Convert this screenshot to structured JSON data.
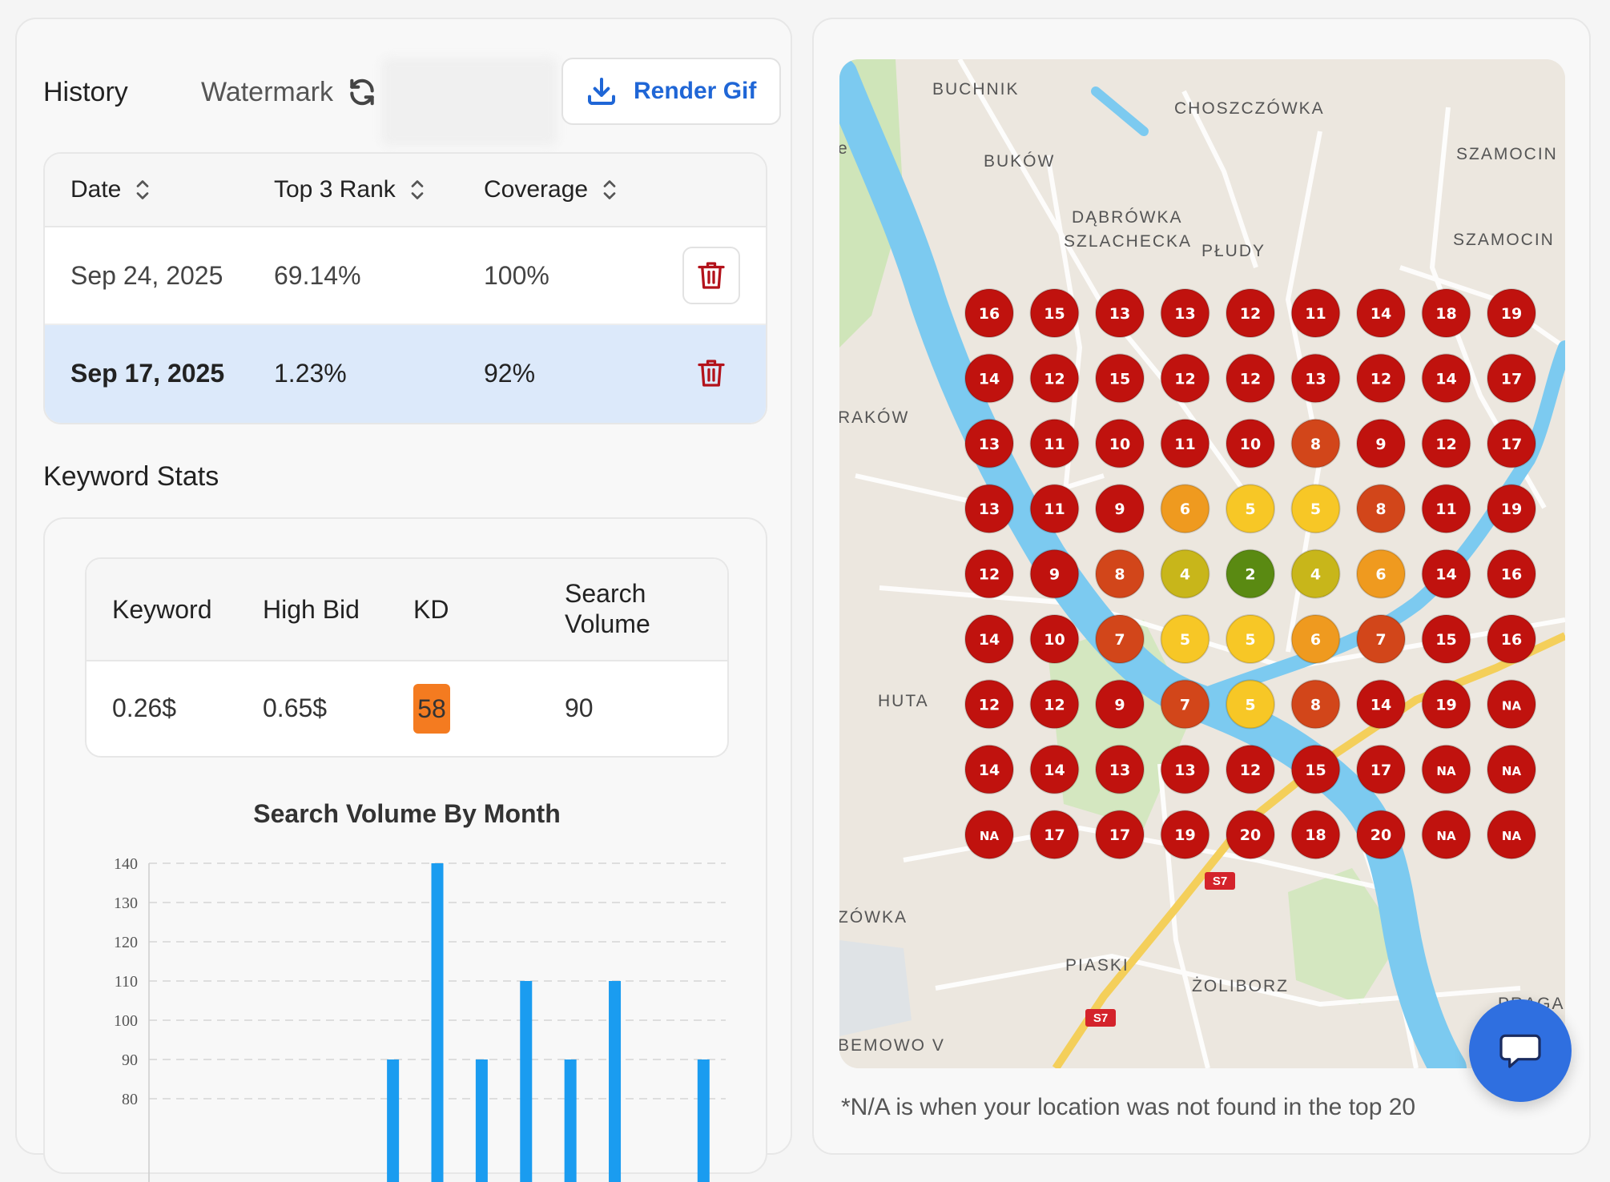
{
  "history": {
    "title": "History",
    "watermark_label": "Watermark",
    "render_button": "Render Gif",
    "columns": [
      "Date",
      "Top 3 Rank",
      "Coverage"
    ],
    "rows": [
      {
        "date": "Sep 24, 2025",
        "top3": "69.14%",
        "coverage": "100%",
        "selected": false
      },
      {
        "date": "Sep 17, 2025",
        "top3": "1.23%",
        "coverage": "92%",
        "selected": true
      }
    ]
  },
  "keyword_stats": {
    "title": "Keyword Stats",
    "columns": [
      "Keyword",
      "High Bid",
      "KD",
      "Search\nVolume"
    ],
    "row": {
      "keyword": "0.26$",
      "high_bid": "0.65$",
      "kd": "58",
      "search_volume": "90"
    },
    "kd_color": "#f47b20"
  },
  "chart_data": {
    "type": "bar",
    "title": "Search Volume By Month",
    "yticks": [
      140,
      130,
      120,
      110,
      100,
      90,
      80
    ],
    "ylim": [
      70,
      140
    ],
    "grid": true,
    "values": [
      null,
      null,
      null,
      null,
      null,
      90,
      140,
      90,
      110,
      90,
      110,
      null,
      90
    ],
    "color": "#1a9cf0"
  },
  "map": {
    "labels": [
      "BUCHNIK",
      "CHOSZCZÓWKA",
      "SZAMOCIN",
      "BUKÓW",
      "DĄBRÓWKA",
      "SZLACHECKA",
      "PŁUDY",
      "SZAMOCIN",
      "RAKÓW",
      "HUTA",
      "ZÓWKA",
      "PIASKI",
      "ŻOLIBORZ",
      "PRAGA",
      "BEMOWO V",
      "S7",
      "S7",
      "e"
    ],
    "grid": [
      [
        "16",
        "15",
        "13",
        "13",
        "12",
        "11",
        "14",
        "18",
        "19"
      ],
      [
        "14",
        "12",
        "15",
        "12",
        "12",
        "13",
        "12",
        "14",
        "17"
      ],
      [
        "13",
        "11",
        "10",
        "11",
        "10",
        "8",
        "9",
        "12",
        "17"
      ],
      [
        "13",
        "11",
        "9",
        "6",
        "5",
        "5",
        "8",
        "11",
        "19"
      ],
      [
        "12",
        "9",
        "8",
        "4",
        "2",
        "4",
        "6",
        "14",
        "16"
      ],
      [
        "14",
        "10",
        "7",
        "5",
        "5",
        "6",
        "7",
        "15",
        "16"
      ],
      [
        "12",
        "12",
        "9",
        "7",
        "5",
        "8",
        "14",
        "19",
        "NA"
      ],
      [
        "14",
        "14",
        "13",
        "13",
        "12",
        "15",
        "17",
        "NA",
        "NA"
      ],
      [
        "NA",
        "17",
        "17",
        "19",
        "20",
        "18",
        "20",
        "NA",
        "NA"
      ]
    ],
    "colors": {
      "red": "#c0120e",
      "dark_orange": "#d2461a",
      "orange": "#ef9a1f",
      "yellow": "#f7c726",
      "olive": "#c8b61a",
      "green": "#5a8a12"
    }
  },
  "footnote": "*N/A is when your location was not found in the top 20"
}
